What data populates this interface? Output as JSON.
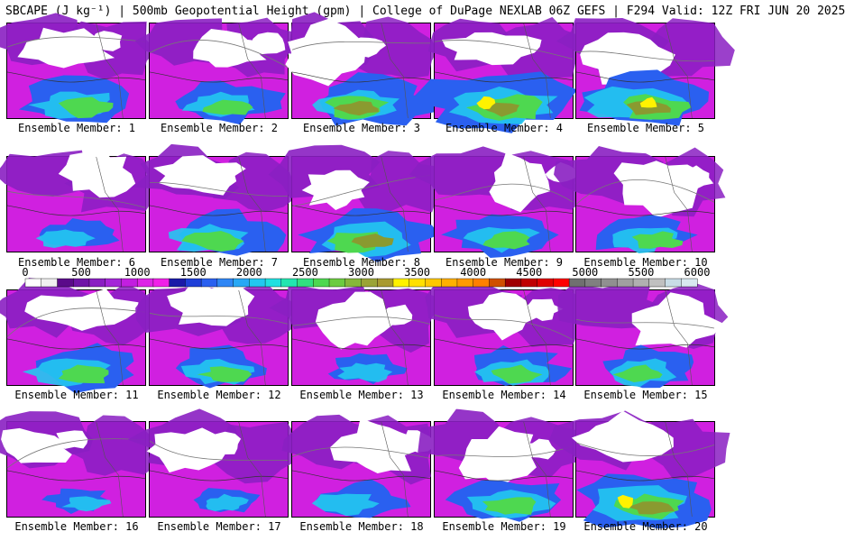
{
  "header": {
    "title": "SBCAPE (J kg⁻¹) | 500mb Geopotential Height (gpm) | College of DuPage NEXLAB 06Z GEFS | F294 Valid: 12Z FRI JUN 20 2025"
  },
  "colorbar": {
    "tick_labels": [
      "0",
      "500",
      "1000",
      "1500",
      "2000",
      "2500",
      "3000",
      "3500",
      "4000",
      "4500",
      "5000",
      "5500",
      "6000"
    ],
    "colors": [
      "#ffffff",
      "#f0f0f0",
      "#5b0a8a",
      "#6f14a6",
      "#8a1fc2",
      "#a426d8",
      "#c21fe0",
      "#dd24e6",
      "#f020e8",
      "#1a1aa8",
      "#1f3fd8",
      "#2a60f0",
      "#2f86f5",
      "#28a8f5",
      "#22c8f0",
      "#20e0e0",
      "#22e6b0",
      "#30e080",
      "#4ed850",
      "#6ccc40",
      "#86b83a",
      "#9aa436",
      "#a89a30",
      "#fff200",
      "#ffe000",
      "#ffc800",
      "#ffb000",
      "#ff9a00",
      "#ff8000",
      "#d05000",
      "#a00000",
      "#c00000",
      "#e00000",
      "#ff0000",
      "#707070",
      "#808080",
      "#909090",
      "#a0a0a0",
      "#b0b0b0",
      "#c0c0c0",
      "#c8dce6",
      "#d8e8f0"
    ]
  },
  "members": [
    {
      "label": "Ensemble Member: 1"
    },
    {
      "label": "Ensemble Member: 2"
    },
    {
      "label": "Ensemble Member: 3"
    },
    {
      "label": "Ensemble Member: 4"
    },
    {
      "label": "Ensemble Member: 5"
    },
    {
      "label": "Ensemble Member: 6"
    },
    {
      "label": "Ensemble Member: 7"
    },
    {
      "label": "Ensemble Member: 8"
    },
    {
      "label": "Ensemble Member: 9"
    },
    {
      "label": "Ensemble Member: 10"
    },
    {
      "label": "Ensemble Member: 11"
    },
    {
      "label": "Ensemble Member: 12"
    },
    {
      "label": "Ensemble Member: 13"
    },
    {
      "label": "Ensemble Member: 14"
    },
    {
      "label": "Ensemble Member: 15"
    },
    {
      "label": "Ensemble Member: 16"
    },
    {
      "label": "Ensemble Member: 17"
    },
    {
      "label": "Ensemble Member: 18"
    },
    {
      "label": "Ensemble Member: 19"
    },
    {
      "label": "Ensemble Member: 20"
    }
  ],
  "palette": {
    "purple": "#8a1fc2",
    "magenta": "#d020e0",
    "blue": "#2a60f0",
    "cyan": "#22c8f0",
    "green": "#4ed850",
    "olive": "#8a9a30",
    "yellow": "#fff200"
  }
}
